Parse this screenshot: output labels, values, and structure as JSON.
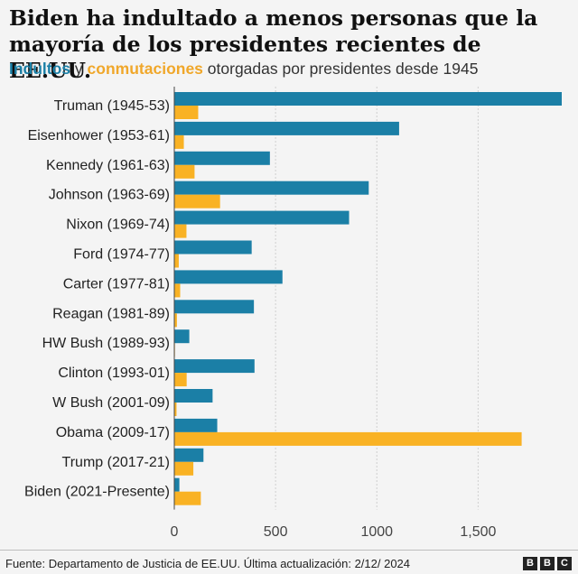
{
  "header": {
    "title": "Biden ha indultado a menos personas que la mayoría de los presidentes recientes de EE.UU.",
    "subtitle_series1": "Indultos",
    "subtitle_join": "y",
    "subtitle_series2": "conmutaciones",
    "subtitle_rest": "otorgadas por presidentes desde 1945"
  },
  "footer": {
    "source": "Fuente: Departamento de Justicia de EE.UU. Última actualización: 2/12/ 2024",
    "logo_letters": [
      "B",
      "B",
      "C"
    ]
  },
  "colors": {
    "pardons": "#1b7fa6",
    "commutations": "#f9b224",
    "background": "#f4f4f4"
  },
  "chart_data": {
    "type": "bar",
    "orientation": "horizontal",
    "categories": [
      "Truman (1945-53)",
      "Eisenhower (1953-61)",
      "Kennedy (1961-63)",
      "Johnson (1963-69)",
      "Nixon (1969-74)",
      "Ford (1974-77)",
      "Carter (1977-81)",
      "Reagan (1981-89)",
      "HW Bush (1989-93)",
      "Clinton (1993-01)",
      "W Bush (2001-09)",
      "Obama (2009-17)",
      "Trump (2017-21)",
      "Biden (2021-Presente)"
    ],
    "series": [
      {
        "name": "Indultos",
        "values": [
          1913,
          1110,
          472,
          960,
          863,
          382,
          534,
          393,
          74,
          396,
          189,
          212,
          144,
          25
        ]
      },
      {
        "name": "conmutaciones",
        "values": [
          118,
          47,
          100,
          226,
          60,
          22,
          29,
          13,
          3,
          61,
          11,
          1715,
          94,
          131
        ]
      }
    ],
    "xlim": [
      0,
      1913
    ],
    "xticks": [
      0,
      500,
      1000,
      1500
    ],
    "xtick_labels": [
      "0",
      "500",
      "1000",
      "1,500"
    ],
    "grid": true,
    "legend": "subtitle"
  }
}
